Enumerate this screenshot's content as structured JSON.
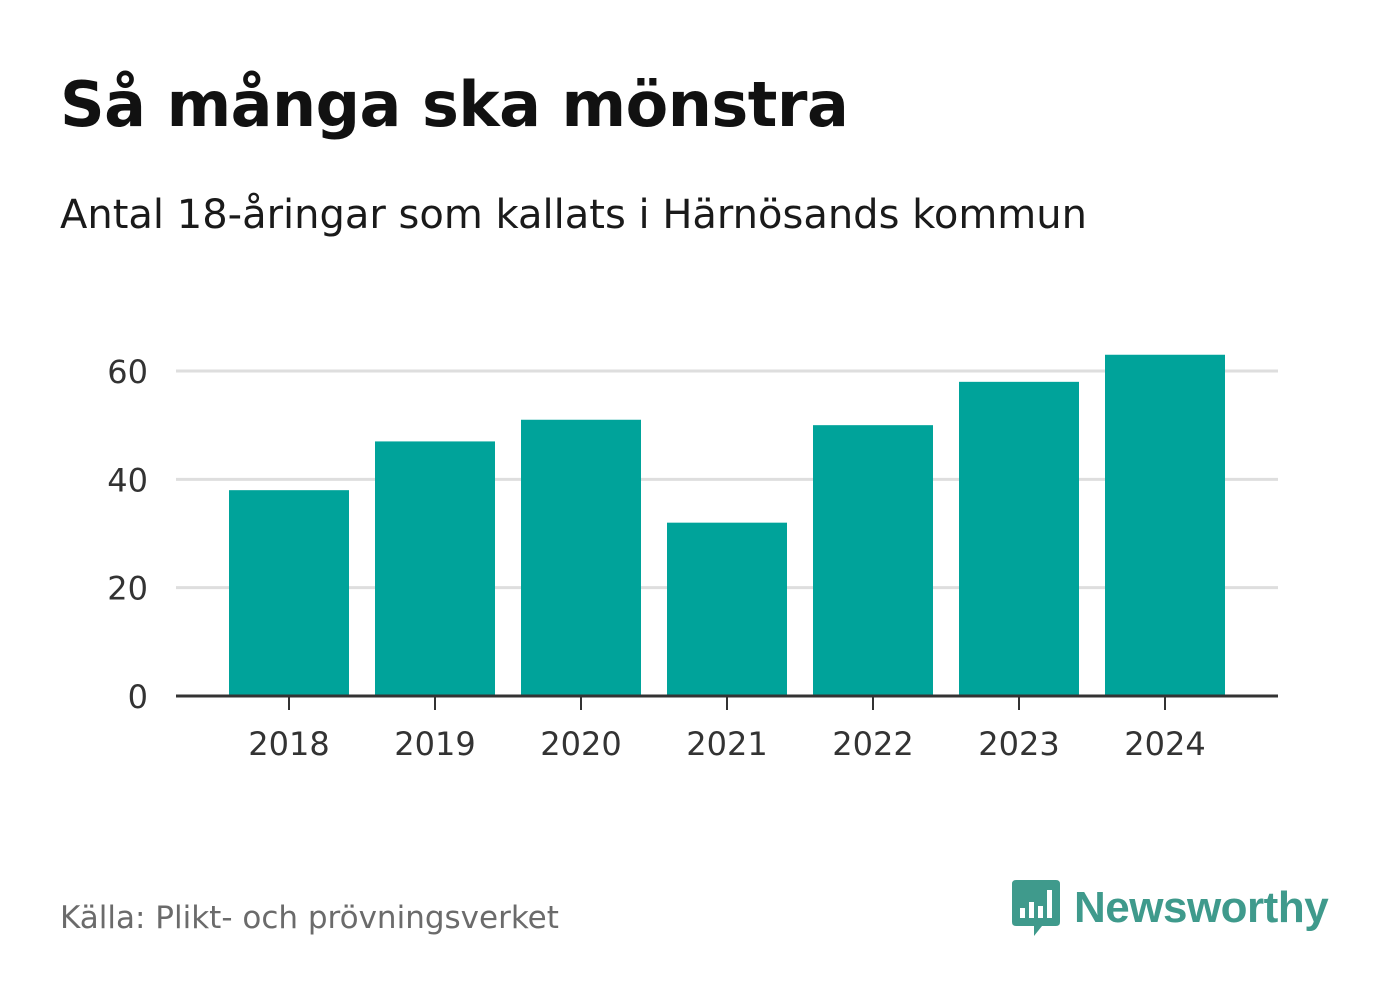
{
  "header": {
    "title": "Så många ska mönstra",
    "subtitle": "Antal 18-åringar som kallats i Härnösands kommun"
  },
  "footer": {
    "source": "Källa: Plikt- och prövningsverket",
    "brand": "Newsworthy",
    "brand_icon": "bar-chart-speech-bubble-icon"
  },
  "colors": {
    "bar": "#00a39a",
    "grid": "#dedede",
    "axis": "#333333",
    "brand": "#3f9a8c"
  },
  "chart_data": {
    "type": "bar",
    "title": "Så många ska mönstra",
    "subtitle": "Antal 18-åringar som kallats i Härnösands kommun",
    "categories": [
      "2018",
      "2019",
      "2020",
      "2021",
      "2022",
      "2023",
      "2024"
    ],
    "values": [
      38,
      47,
      51,
      32,
      50,
      58,
      63
    ],
    "xlabel": "",
    "ylabel": "",
    "ylim": [
      0,
      60
    ],
    "yticks": [
      0,
      20,
      40,
      60
    ],
    "ytick_labels": [
      "0",
      "20",
      "40",
      "60"
    ],
    "grid": true
  }
}
